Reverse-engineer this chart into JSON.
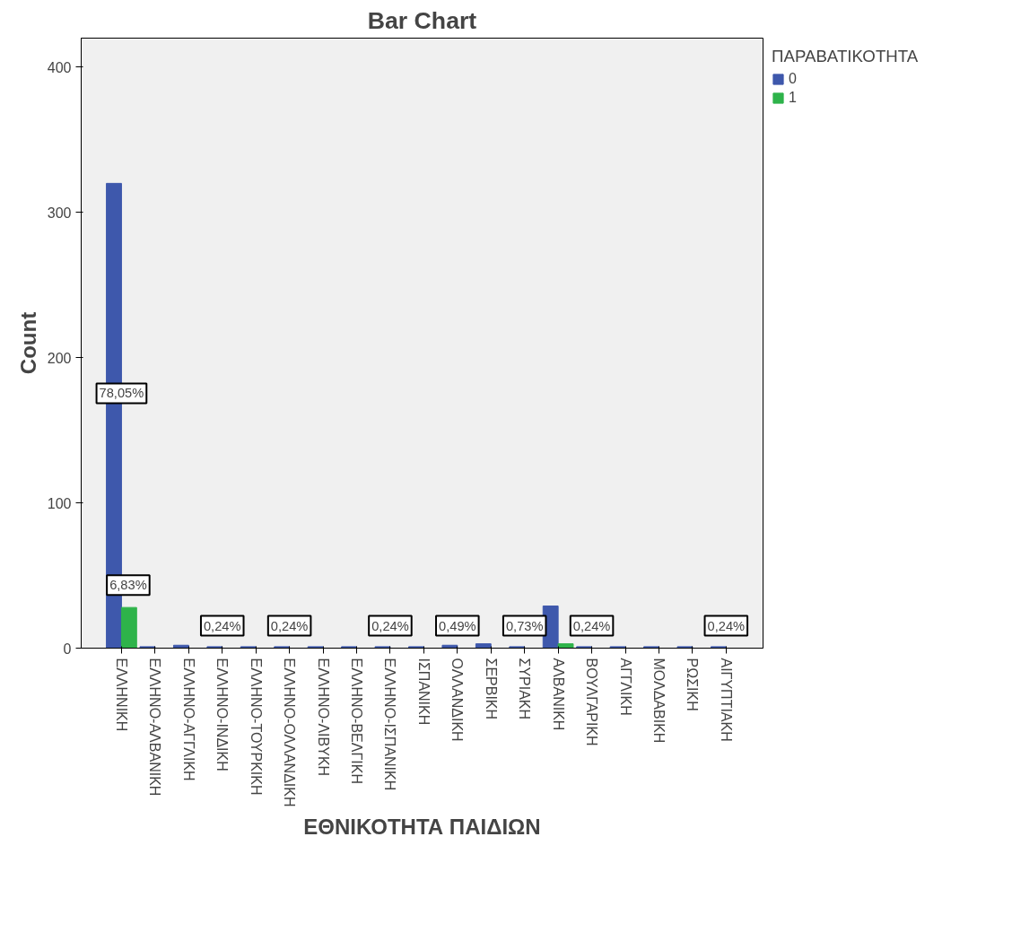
{
  "chart_data": {
    "type": "bar",
    "title": "Bar Chart",
    "xlabel": "ΕΘΝΙΚΟΤΗΤΑ ΠΑΙΔΙΩΝ",
    "ylabel": "Count",
    "legend_title": "ΠΑΡΑΒΑΤΙΚΟΤΗΤΑ",
    "categories": [
      "ΕΛΛΗΝΙΚΗ",
      "ΕΛΛΗΝΟ-ΑΛΒΑΝΙΚΗ",
      "ΕΛΛΗΝΟ-ΑΓΓΛΙΚΗ",
      "ΕΛΛΗΝΟ-ΙΝΔΙΚΗ",
      "ΕΛΛΗΝΟ-ΤΟΥΡΚΙΚΗ",
      "ΕΛΛΗΝΟ-ΟΛΛΑΝΔΙΚΗ",
      "ΕΛΛΗΝΟ-ΛΙΒΥΚΗ",
      "ΕΛΛΗΝΟ-ΒΕΛΓΙΚΗ",
      "ΕΛΛΗΝΟ-ΙΣΠΑΝΙΚΗ",
      "ΙΣΠΑΝΙΚΗ",
      "ΟΛΛΑΝΔΙΚΗ",
      "ΣΕΡΒΙΚΗ",
      "ΣΥΡΙΑΚΗ",
      "ΑΛΒΑΝΙΚΗ",
      "ΒΟΥΛΓΑΡΙΚΗ",
      "ΑΓΓΛΙΚΗ",
      "ΜΟΛΔΑΒΙΚΗ",
      "ΡΩΣΙΚΗ",
      "ΑΙΓΥΠΤΙΑΚΗ"
    ],
    "series": [
      {
        "name": "0",
        "color": "#3e58ac",
        "values": [
          320,
          1,
          2,
          1,
          1,
          1,
          1,
          1,
          1,
          1,
          2,
          3,
          1,
          29,
          1,
          1,
          1,
          1,
          1
        ]
      },
      {
        "name": "1",
        "color": "#2eb34a",
        "values": [
          28,
          0,
          0,
          0,
          0,
          0,
          0,
          0,
          0,
          0,
          0,
          0,
          0,
          3,
          0,
          0,
          0,
          0,
          0
        ]
      }
    ],
    "ylim": [
      0,
      420
    ],
    "yticks": [
      0,
      100,
      200,
      300,
      400
    ],
    "grid": false,
    "legend": "top right",
    "annotations": [
      {
        "text": "78,05%",
        "x": "ΕΛΛΗΝΙΚΗ",
        "y": 160
      },
      {
        "text": "6,83%",
        "x": "ΕΛΛΗΝΙΚΗ",
        "y": 28
      },
      {
        "text": "0,24%",
        "x": "ΕΛΛΗΝΟ-ΙΝΔΙΚΗ",
        "y": 0
      },
      {
        "text": "0,24%",
        "x": "ΕΛΛΗΝΟ-ΟΛΛΑΝΔΙΚΗ",
        "y": 0
      },
      {
        "text": "0,24%",
        "x": "ΕΛΛΗΝΟ-ΙΣΠΑΝΙΚΗ",
        "y": 0
      },
      {
        "text": "0,49%",
        "x": "ΟΛΛΑΝΔΙΚΗ",
        "y": 0
      },
      {
        "text": "0,73%",
        "x": "ΣΥΡΙΑΚΗ",
        "y": 0
      },
      {
        "text": "0,24%",
        "x": "ΒΟΥΛΓΑΡΙΚΗ",
        "y": 0
      },
      {
        "text": "0,24%",
        "x": "ΑΙΓΥΠΤΙΑΚΗ",
        "y": 0
      }
    ]
  }
}
